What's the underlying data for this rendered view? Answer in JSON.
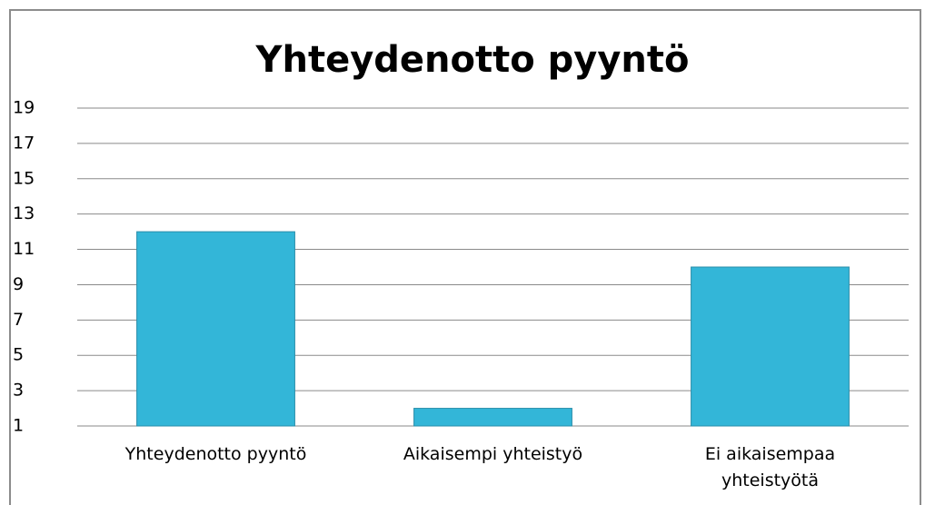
{
  "chart_data": {
    "type": "bar",
    "title": "Yhteydenotto pyyntö",
    "categories": [
      "Yhteydenotto pyyntö",
      "Aikaisempi yhteistyö",
      "Ei aikaisempaa yhteistyötä"
    ],
    "values": [
      12,
      2,
      10
    ],
    "color": "#33b6d8",
    "ylim": [
      1,
      19
    ],
    "yticks": [
      1,
      3,
      5,
      7,
      9,
      11,
      13,
      15,
      17,
      19
    ],
    "grid": true
  }
}
